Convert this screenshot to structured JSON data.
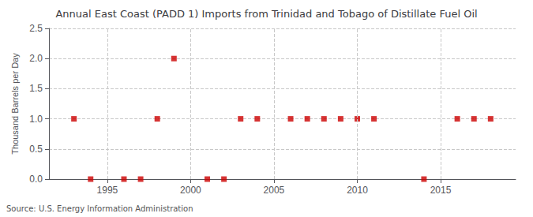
{
  "chart_data": {
    "type": "scatter",
    "title": "Annual East Coast (PADD 1) Imports from Trinidad and Tobago of Distillate Fuel Oil",
    "ylabel": "Thousand Barrels per Day",
    "source": "Source: U.S. Energy Information Administration",
    "x": [
      1993,
      1994,
      1996,
      1997,
      1998,
      1999,
      2001,
      2002,
      2003,
      2004,
      2006,
      2007,
      2008,
      2009,
      2010,
      2011,
      2014,
      2016,
      2017,
      2018
    ],
    "values": [
      1.0,
      0.0,
      0.0,
      0.0,
      1.0,
      2.0,
      0.0,
      0.0,
      1.0,
      1.0,
      1.0,
      1.0,
      1.0,
      1.0,
      1.0,
      1.0,
      0.0,
      1.0,
      1.0,
      1.0
    ],
    "color": "#cc0000",
    "marker": "square",
    "xlim": [
      1991.5,
      2019.5
    ],
    "ylim": [
      0,
      2.5
    ],
    "xticks": [
      1995,
      2000,
      2005,
      2010,
      2015
    ],
    "yticks": [
      {
        "value": 0,
        "label": "0.0"
      },
      0.5,
      {
        "value": 1,
        "label": "1.0"
      },
      1.5,
      {
        "value": 2,
        "label": "2.0"
      },
      2.5
    ],
    "grid": true
  }
}
